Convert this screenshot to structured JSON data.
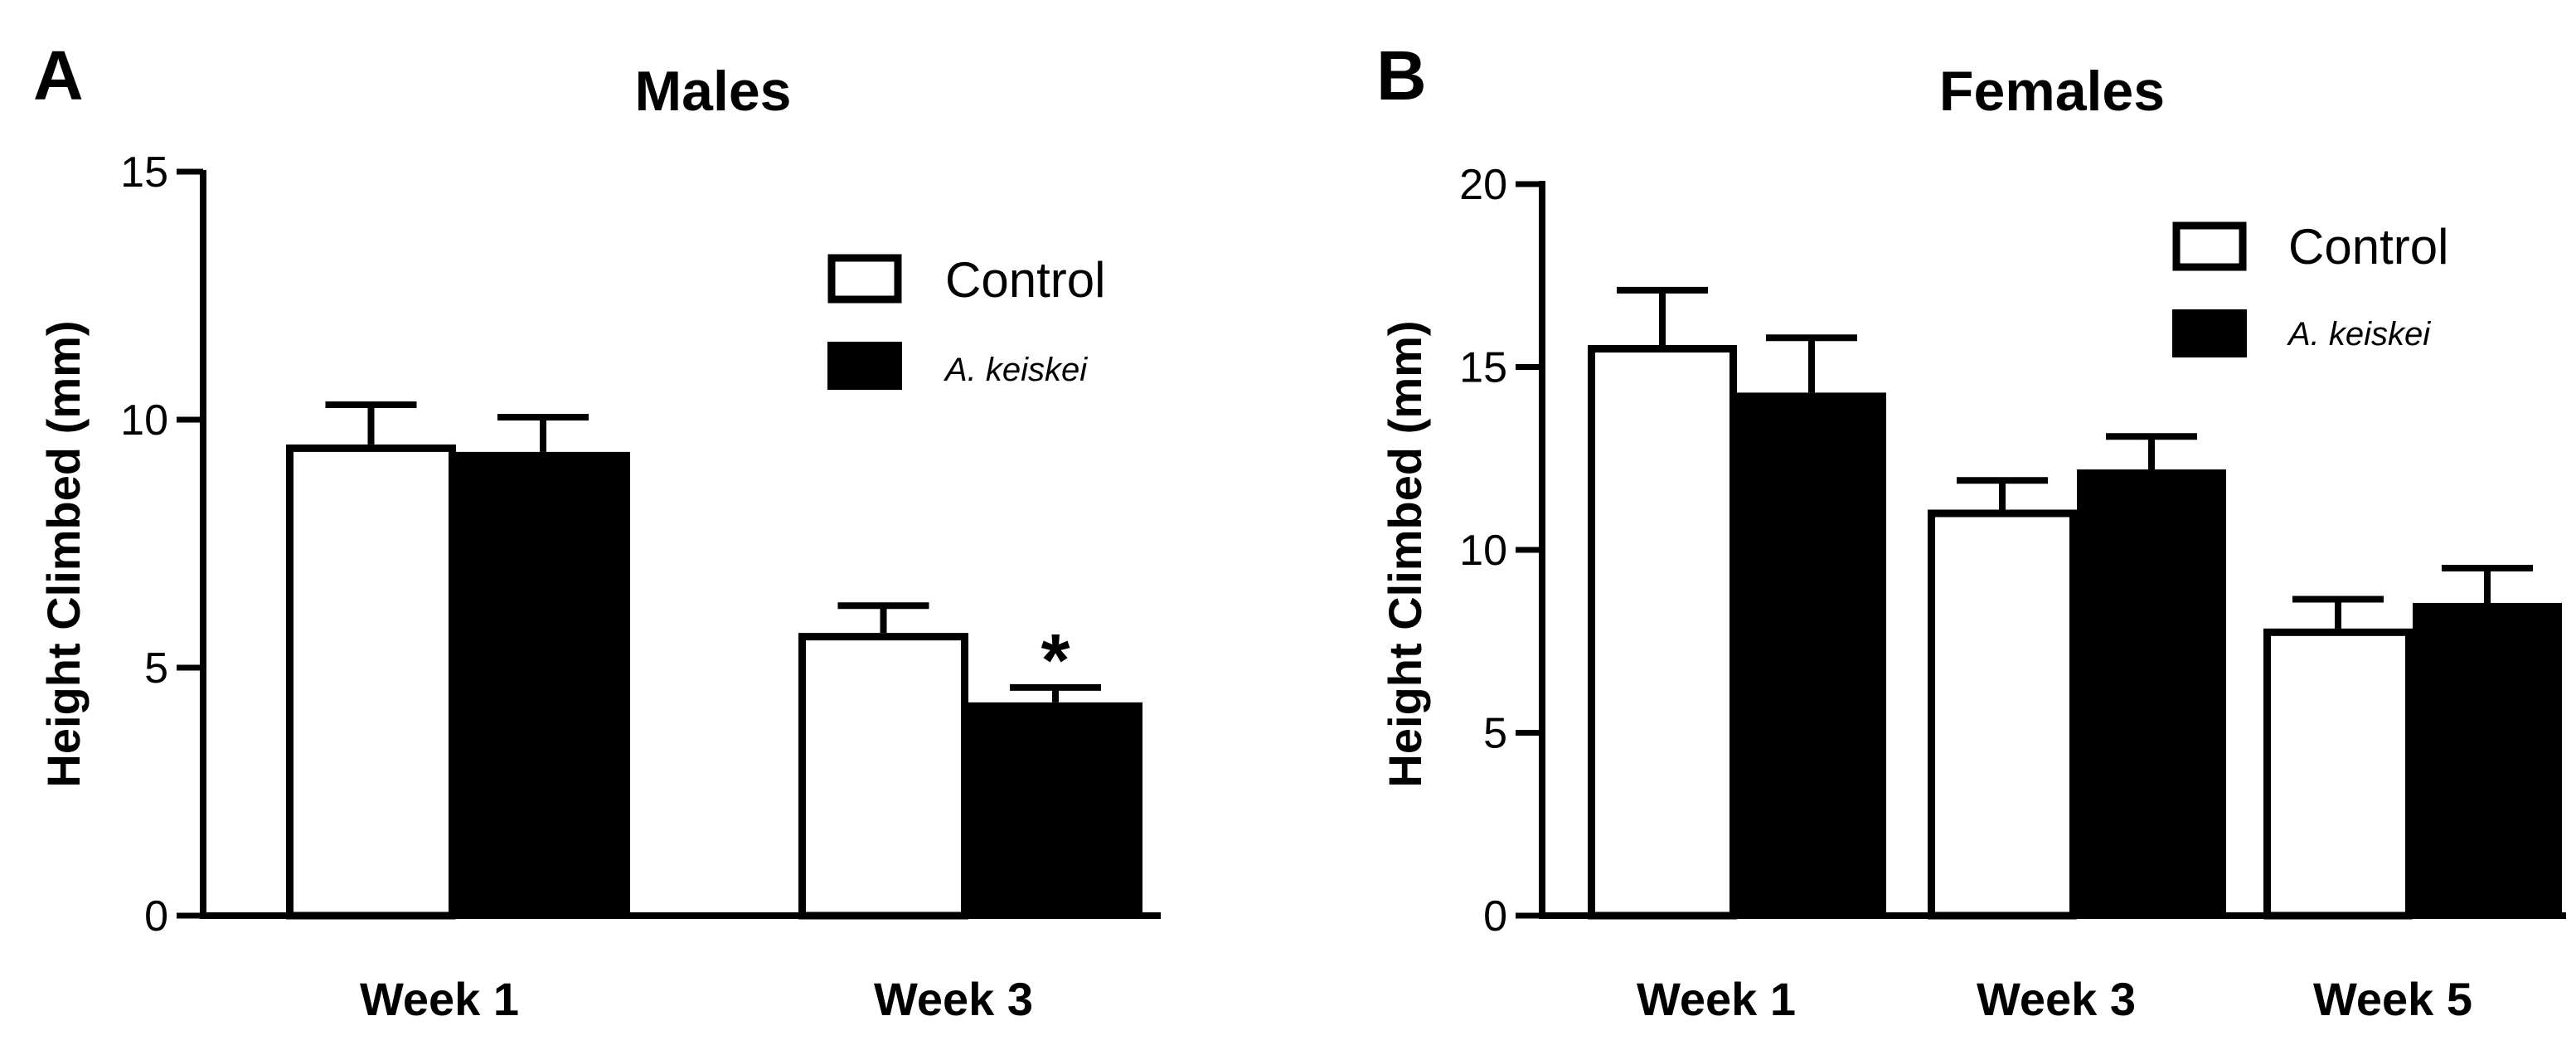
{
  "chart_data": [
    {
      "type": "bar",
      "panel": "A",
      "title": "Males",
      "xlabel": "",
      "ylabel": "Height Climbed (mm)",
      "ylim": [
        0,
        15
      ],
      "yticks": [
        0,
        5,
        10,
        15
      ],
      "categories": [
        "Week 1",
        "Week 3"
      ],
      "series": [
        {
          "name": "Control",
          "fill": "#ffffff",
          "values": [
            9.5,
            5.7
          ],
          "errors": [
            0.8,
            0.55
          ]
        },
        {
          "name": "A. keiskei",
          "fill": "#000000",
          "values": [
            9.35,
            4.3
          ],
          "errors": [
            0.7,
            0.3
          ]
        }
      ],
      "annotations": [
        {
          "text": "*",
          "category": "Week 3",
          "series": "A. keiskei"
        }
      ],
      "legend": {
        "position": "top-right",
        "entries": [
          "Control",
          "A. keiskei"
        ]
      }
    },
    {
      "type": "bar",
      "panel": "B",
      "title": "Females",
      "xlabel": "",
      "ylabel": "Height Climbed (mm)",
      "ylim": [
        0,
        20
      ],
      "yticks": [
        0,
        5,
        10,
        15,
        20
      ],
      "categories": [
        "Week 1",
        "Week 3",
        "Week 5"
      ],
      "series": [
        {
          "name": "Control",
          "fill": "#ffffff",
          "values": [
            15.6,
            11.1,
            7.85
          ],
          "errors": [
            1.5,
            0.8,
            0.8
          ]
        },
        {
          "name": "A. keiskei",
          "fill": "#000000",
          "values": [
            14.3,
            12.2,
            8.55
          ],
          "errors": [
            1.5,
            0.9,
            0.95
          ]
        }
      ],
      "annotations": [],
      "legend": {
        "position": "top-right",
        "entries": [
          "Control",
          "A. keiskei"
        ]
      }
    }
  ]
}
